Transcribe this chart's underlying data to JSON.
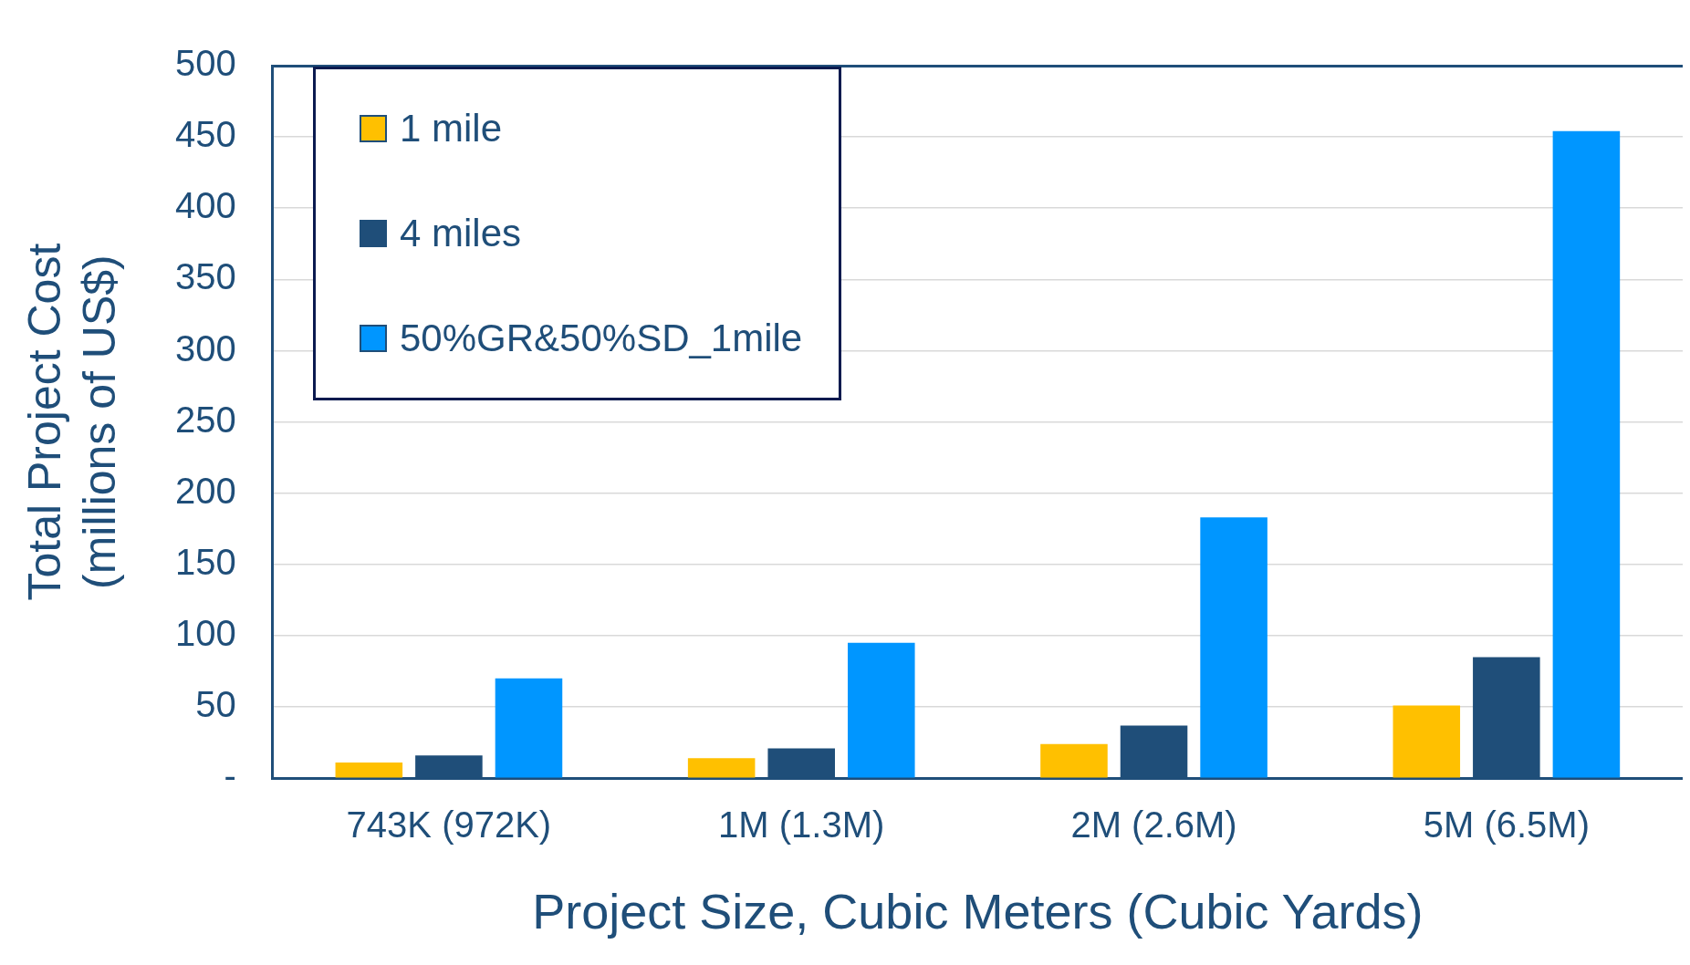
{
  "chart_data": {
    "type": "bar",
    "xlabel": "Project Size, Cubic Meters (Cubic Yards)",
    "ylabel": "Total Project Cost (millions of US$)",
    "categories": [
      "743K (972K)",
      "1M (1.3M)",
      "2M (2.6M)",
      "5M (6.5M)"
    ],
    "series": [
      {
        "name": "1 mile",
        "color": "#ffc000",
        "values": [
          11,
          14,
          24,
          51
        ]
      },
      {
        "name": "4 miles",
        "color": "#1f4e79",
        "values": [
          16,
          21,
          37,
          85
        ]
      },
      {
        "name": "50%GR&50%SD_1mile",
        "color": "#0096ff",
        "values": [
          70,
          95,
          183,
          454
        ]
      }
    ],
    "ylim": [
      0,
      500
    ],
    "yticks": [
      {
        "value": 0,
        "label": "-"
      },
      50,
      100,
      150,
      200,
      250,
      300,
      350,
      400,
      450,
      500
    ],
    "grid": "y",
    "legend": "top left"
  }
}
